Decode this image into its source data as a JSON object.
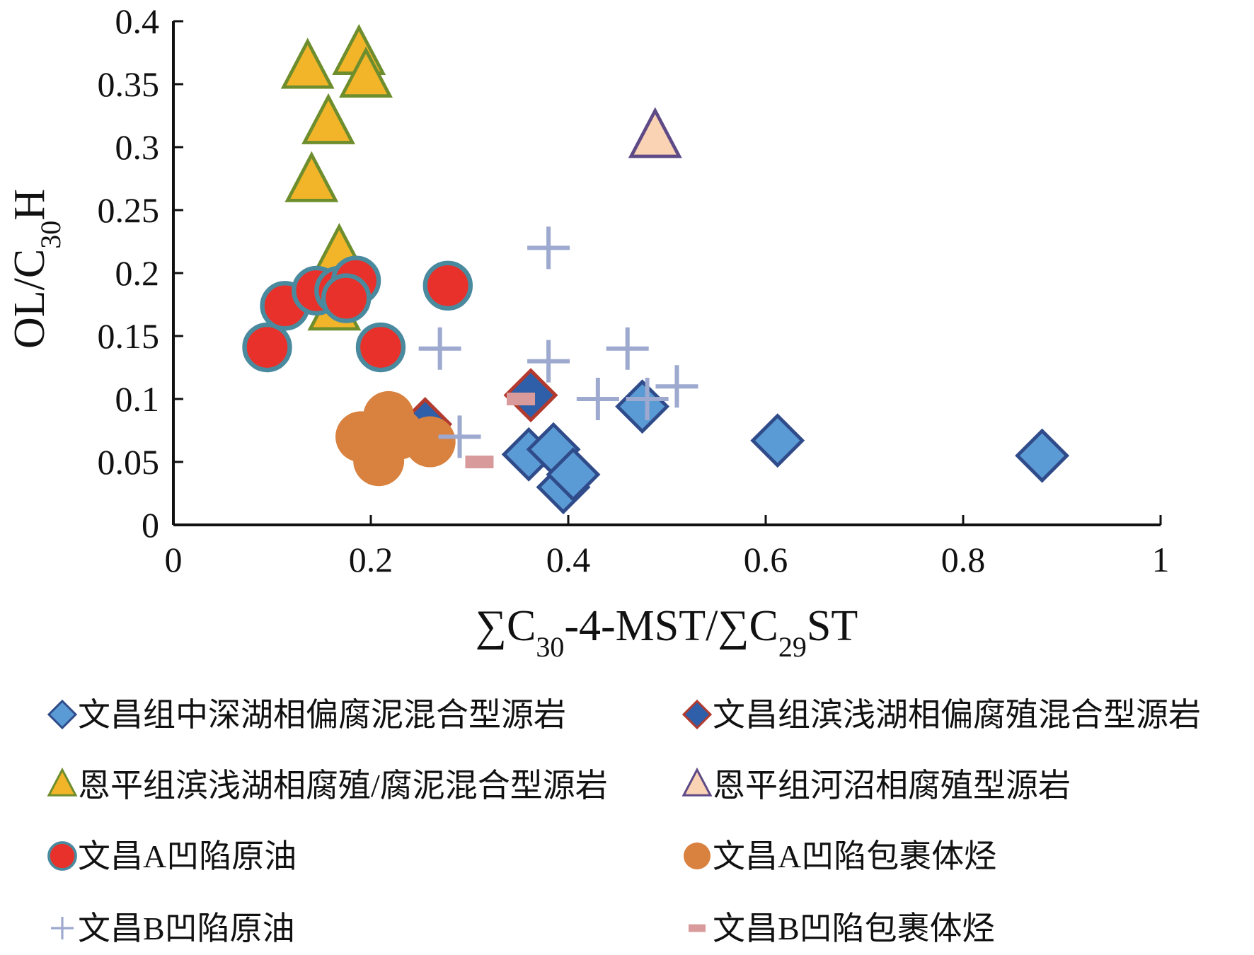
{
  "chart_data": {
    "type": "scatter",
    "xlabel": {
      "pre": "∑C",
      "sub1": "30",
      "mid": "-4-MST/∑C",
      "sub2": "29",
      "post": "ST"
    },
    "ylabel": {
      "pre": "OL/C",
      "sub": "30",
      "post": "H"
    },
    "xlim": [
      0,
      1
    ],
    "ylim": [
      0,
      0.4
    ],
    "x_ticks": [
      "0",
      "0.2",
      "0.4",
      "0.6",
      "0.8",
      "1"
    ],
    "y_ticks": [
      "0",
      "0.05",
      "0.1",
      "0.15",
      "0.2",
      "0.25",
      "0.3",
      "0.35",
      "0.4"
    ],
    "grid": false,
    "legend_position": "bottom",
    "series": [
      {
        "name": "文昌组中深湖相偏腐泥混合型源岩",
        "marker": "diamond",
        "fill": "#5B9BD5",
        "stroke": "#2F4B8A",
        "points": [
          [
            0.36,
            0.056
          ],
          [
            0.385,
            0.06
          ],
          [
            0.395,
            0.03
          ],
          [
            0.405,
            0.04
          ],
          [
            0.475,
            0.094
          ],
          [
            0.612,
            0.067
          ],
          [
            0.88,
            0.055
          ]
        ]
      },
      {
        "name": "文昌组滨浅湖相偏腐殖混合型源岩",
        "marker": "diamond",
        "fill": "#2E5FA8",
        "stroke": "#B23A2E",
        "points": [
          [
            0.255,
            0.08
          ],
          [
            0.362,
            0.103
          ]
        ]
      },
      {
        "name": "恩平组滨浅湖相腐殖/腐泥混合型源岩",
        "marker": "triangle",
        "fill": "#F2B52A",
        "stroke": "#6E8E2E",
        "points": [
          [
            0.136,
            0.362
          ],
          [
            0.188,
            0.373
          ],
          [
            0.195,
            0.355
          ],
          [
            0.157,
            0.318
          ],
          [
            0.14,
            0.272
          ],
          [
            0.168,
            0.215
          ],
          [
            0.163,
            0.17
          ]
        ]
      },
      {
        "name": "恩平组河沼相腐殖型源岩",
        "marker": "triangle",
        "fill": "#FAD2B4",
        "stroke": "#5E4A86",
        "points": [
          [
            0.488,
            0.307
          ]
        ]
      },
      {
        "name": "文昌A凹陷原油",
        "marker": "circle",
        "fill": "#E8312A",
        "stroke": "#4A8A9E",
        "points": [
          [
            0.095,
            0.141
          ],
          [
            0.113,
            0.174
          ],
          [
            0.145,
            0.186
          ],
          [
            0.168,
            0.186
          ],
          [
            0.185,
            0.194
          ],
          [
            0.175,
            0.18
          ],
          [
            0.21,
            0.141
          ],
          [
            0.278,
            0.19
          ]
        ]
      },
      {
        "name": "文昌A凹陷包裹体烃",
        "marker": "circle",
        "fill": "#D9813F",
        "stroke": "none",
        "points": [
          [
            0.19,
            0.07
          ],
          [
            0.218,
            0.086
          ],
          [
            0.228,
            0.072
          ],
          [
            0.208,
            0.051
          ],
          [
            0.26,
            0.066
          ]
        ]
      },
      {
        "name": "文昌B凹陷原油",
        "marker": "plus",
        "fill": "none",
        "stroke": "#9DA9CF",
        "points": [
          [
            0.38,
            0.22
          ],
          [
            0.27,
            0.14
          ],
          [
            0.38,
            0.13
          ],
          [
            0.46,
            0.14
          ],
          [
            0.43,
            0.1
          ],
          [
            0.48,
            0.1
          ],
          [
            0.51,
            0.11
          ],
          [
            0.29,
            0.07
          ]
        ]
      },
      {
        "name": "文昌B凹陷包裹体烃",
        "marker": "dash",
        "fill": "#D89A9A",
        "stroke": "none",
        "points": [
          [
            0.352,
            0.1
          ],
          [
            0.31,
            0.05
          ]
        ]
      }
    ]
  }
}
